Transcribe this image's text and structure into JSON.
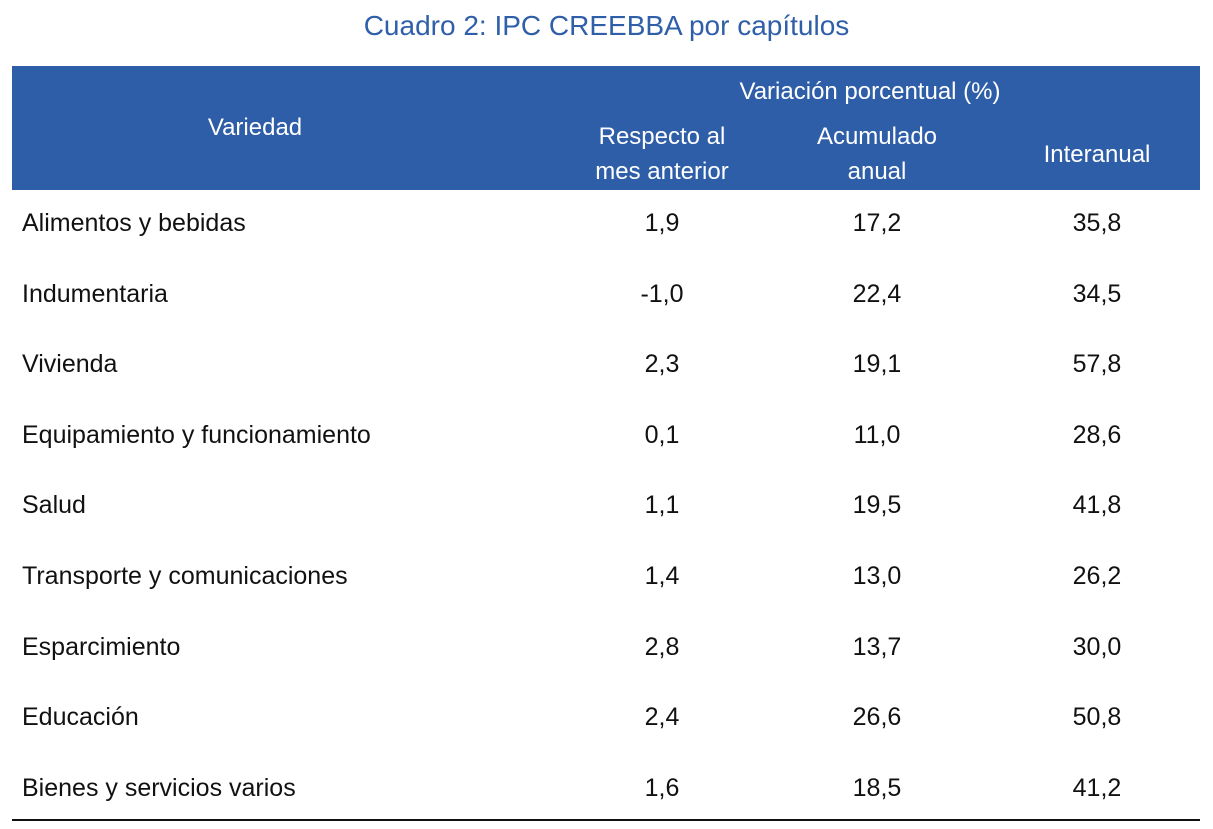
{
  "title": "Cuadro 2: IPC CREEBBA por capítulos",
  "header": {
    "row_label": "Variedad",
    "group": "Variación porcentual (%)",
    "columns": [
      {
        "lines": [
          "Respecto al",
          "mes anterior"
        ]
      },
      {
        "lines": [
          "Acumulado",
          "anual"
        ]
      },
      {
        "lines": [
          "Interanual"
        ]
      }
    ]
  },
  "table": {
    "rows": [
      [
        "Alimentos y bebidas",
        "1,9",
        "17,2",
        "35,8"
      ],
      [
        "Indumentaria",
        "-1,0",
        "22,4",
        "34,5"
      ],
      [
        "Vivienda",
        "2,3",
        "19,1",
        "57,8"
      ],
      [
        "Equipamiento y funcionamiento",
        "0,1",
        "11,0",
        "28,6"
      ],
      [
        "Salud",
        "1,1",
        "19,5",
        "41,8"
      ],
      [
        "Transporte y comunicaciones",
        "1,4",
        "13,0",
        "26,2"
      ],
      [
        "Esparcimiento",
        "2,8",
        "13,7",
        "30,0"
      ],
      [
        "Educación",
        "2,4",
        "26,6",
        "50,8"
      ],
      [
        "Bienes y servicios varios",
        "1,6",
        "18,5",
        "41,2"
      ]
    ]
  }
}
